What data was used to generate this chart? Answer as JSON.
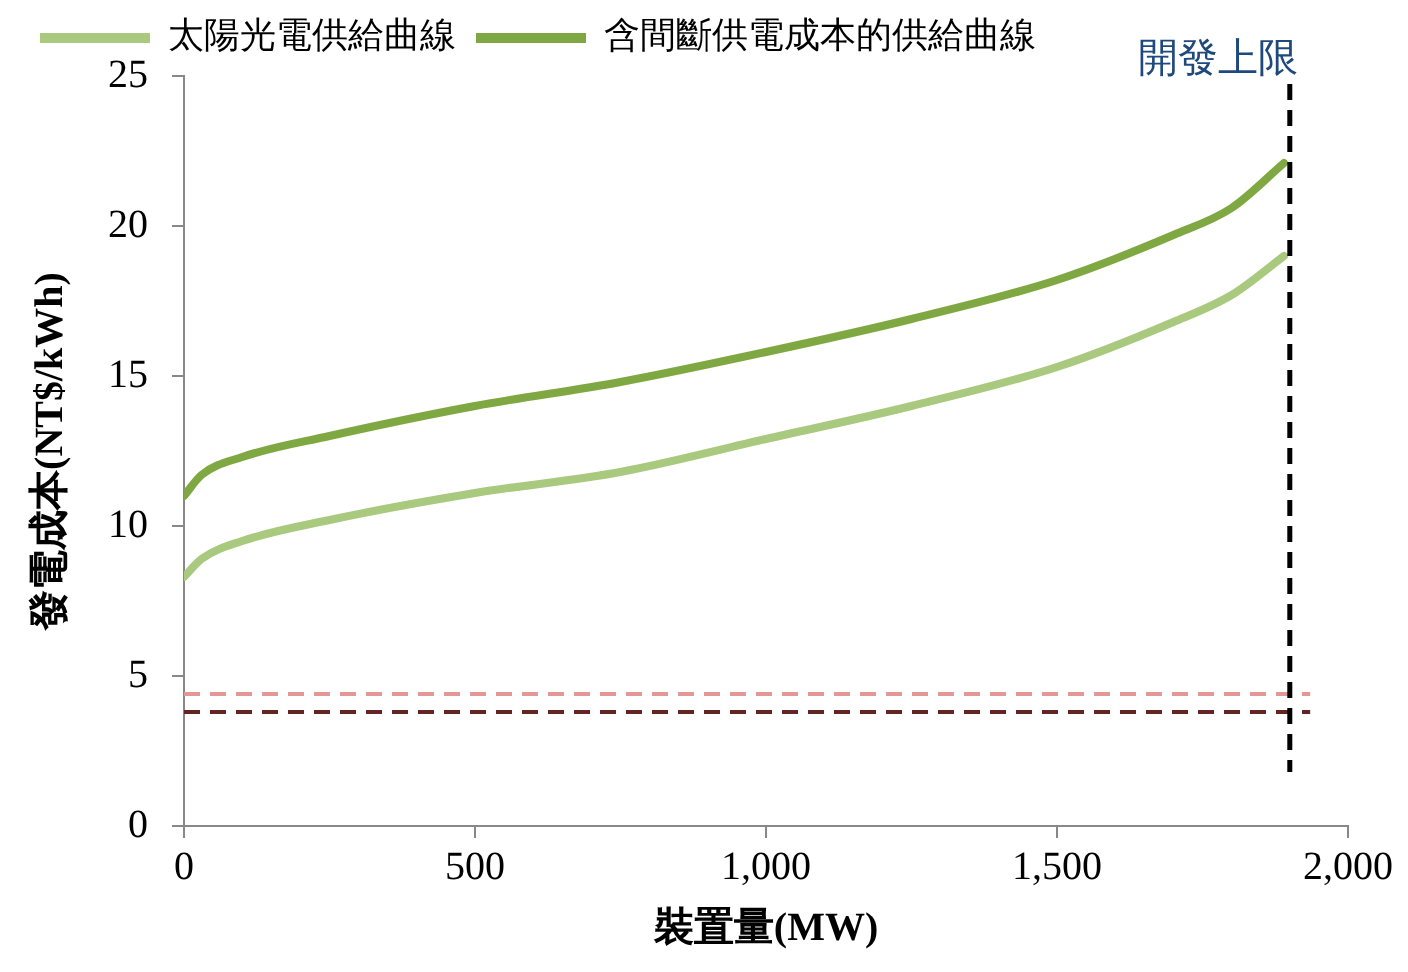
{
  "chart_data": {
    "type": "line",
    "xlabel": "裝置量(MW)",
    "ylabel": "發電成本(NT$/kWh)",
    "xlim": [
      0,
      2000
    ],
    "xticks": [
      0,
      {
        "value": 500,
        "label": "500"
      },
      {
        "value": 1000,
        "label": "1,000"
      },
      {
        "value": 1500,
        "label": "1,500"
      },
      {
        "value": 2000,
        "label": "2,000"
      }
    ],
    "ylim": [
      0,
      25
    ],
    "yticks": [
      0,
      5,
      10,
      15,
      20,
      25
    ],
    "grid": false,
    "legend": "top",
    "marker": "none",
    "line_style": "solid",
    "series": [
      {
        "name": "太陽光電供給曲線",
        "color": "#a9c97f",
        "x": [
          0,
          30,
          100,
          250,
          500,
          750,
          1000,
          1250,
          1500,
          1700,
          1800,
          1890
        ],
        "values": [
          8.3,
          8.9,
          9.5,
          10.2,
          11.1,
          11.8,
          12.9,
          14.0,
          15.3,
          16.8,
          17.7,
          19.0
        ]
      },
      {
        "name": "含間斷供電成本的供給曲線",
        "color": "#7fa843",
        "x": [
          0,
          30,
          100,
          250,
          500,
          750,
          1000,
          1250,
          1500,
          1700,
          1800,
          1890
        ],
        "values": [
          11.0,
          11.7,
          12.3,
          13.0,
          14.0,
          14.8,
          15.8,
          16.9,
          18.2,
          19.7,
          20.6,
          22.1
        ]
      }
    ],
    "ref_lines": [
      {
        "axis": "y",
        "value": 4.4,
        "color": "#e39896",
        "line_style": "dashed"
      },
      {
        "axis": "y",
        "value": 3.8,
        "color": "#632523",
        "line_style": "dashed"
      },
      {
        "axis": "x",
        "value": 1900,
        "label": "開發上限",
        "color": "#000000",
        "line_style": "dashed"
      }
    ]
  }
}
